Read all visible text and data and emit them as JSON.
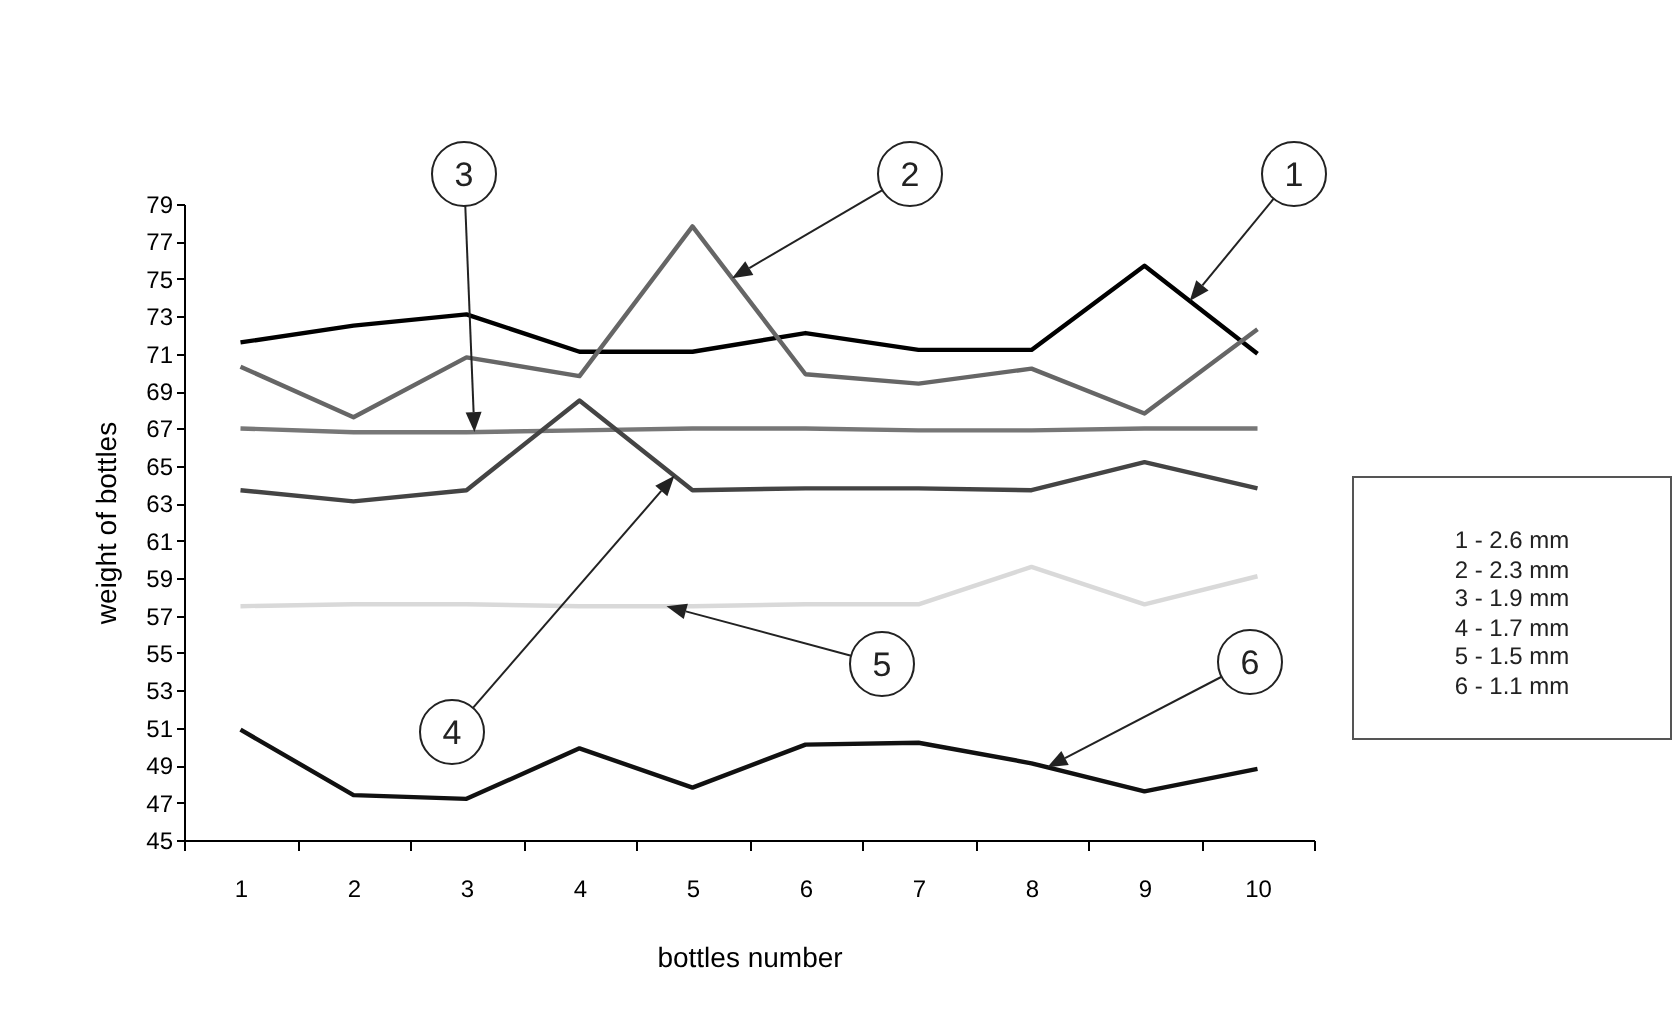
{
  "chart_data": {
    "type": "line",
    "xlabel": "bottles number",
    "ylabel": "weight of bottles",
    "categories": [
      "1",
      "2",
      "3",
      "4",
      "5",
      "6",
      "7",
      "8",
      "9",
      "10"
    ],
    "ylim": [
      45,
      79
    ],
    "yticks": [
      45,
      47,
      49,
      51,
      53,
      55,
      57,
      59,
      61,
      63,
      65,
      67,
      69,
      71,
      73,
      75,
      77,
      79
    ],
    "series": [
      {
        "name": "1",
        "color": "#000000",
        "values": [
          71.6,
          72.5,
          73.1,
          71.1,
          71.1,
          72.1,
          71.2,
          71.2,
          75.7,
          71.0
        ]
      },
      {
        "name": "2",
        "color": "#666666",
        "values": [
          70.3,
          67.6,
          70.8,
          69.8,
          77.8,
          69.9,
          69.4,
          70.2,
          67.8,
          72.3
        ]
      },
      {
        "name": "3",
        "color": "#777777",
        "values": [
          67.0,
          66.8,
          66.8,
          66.9,
          67.0,
          67.0,
          66.9,
          66.9,
          67.0,
          67.0
        ]
      },
      {
        "name": "4",
        "color": "#444444",
        "values": [
          63.7,
          63.1,
          63.7,
          68.5,
          63.7,
          63.8,
          63.8,
          63.7,
          65.2,
          63.8
        ]
      },
      {
        "name": "5",
        "color": "#d9d9d9",
        "values": [
          57.5,
          57.6,
          57.6,
          57.5,
          57.5,
          57.6,
          57.6,
          59.6,
          57.6,
          59.1
        ]
      },
      {
        "name": "6",
        "color": "#111111",
        "values": [
          50.9,
          47.4,
          47.2,
          49.9,
          47.8,
          50.1,
          50.2,
          49.1,
          47.6,
          48.8
        ]
      }
    ],
    "annotations": [
      "1 - 2.6 mm",
      "2 - 2.3 mm",
      "3 - 1.9 mm",
      "4 - 1.7 mm",
      "5 - 1.5 mm",
      "6 - 1.1 mm"
    ]
  }
}
